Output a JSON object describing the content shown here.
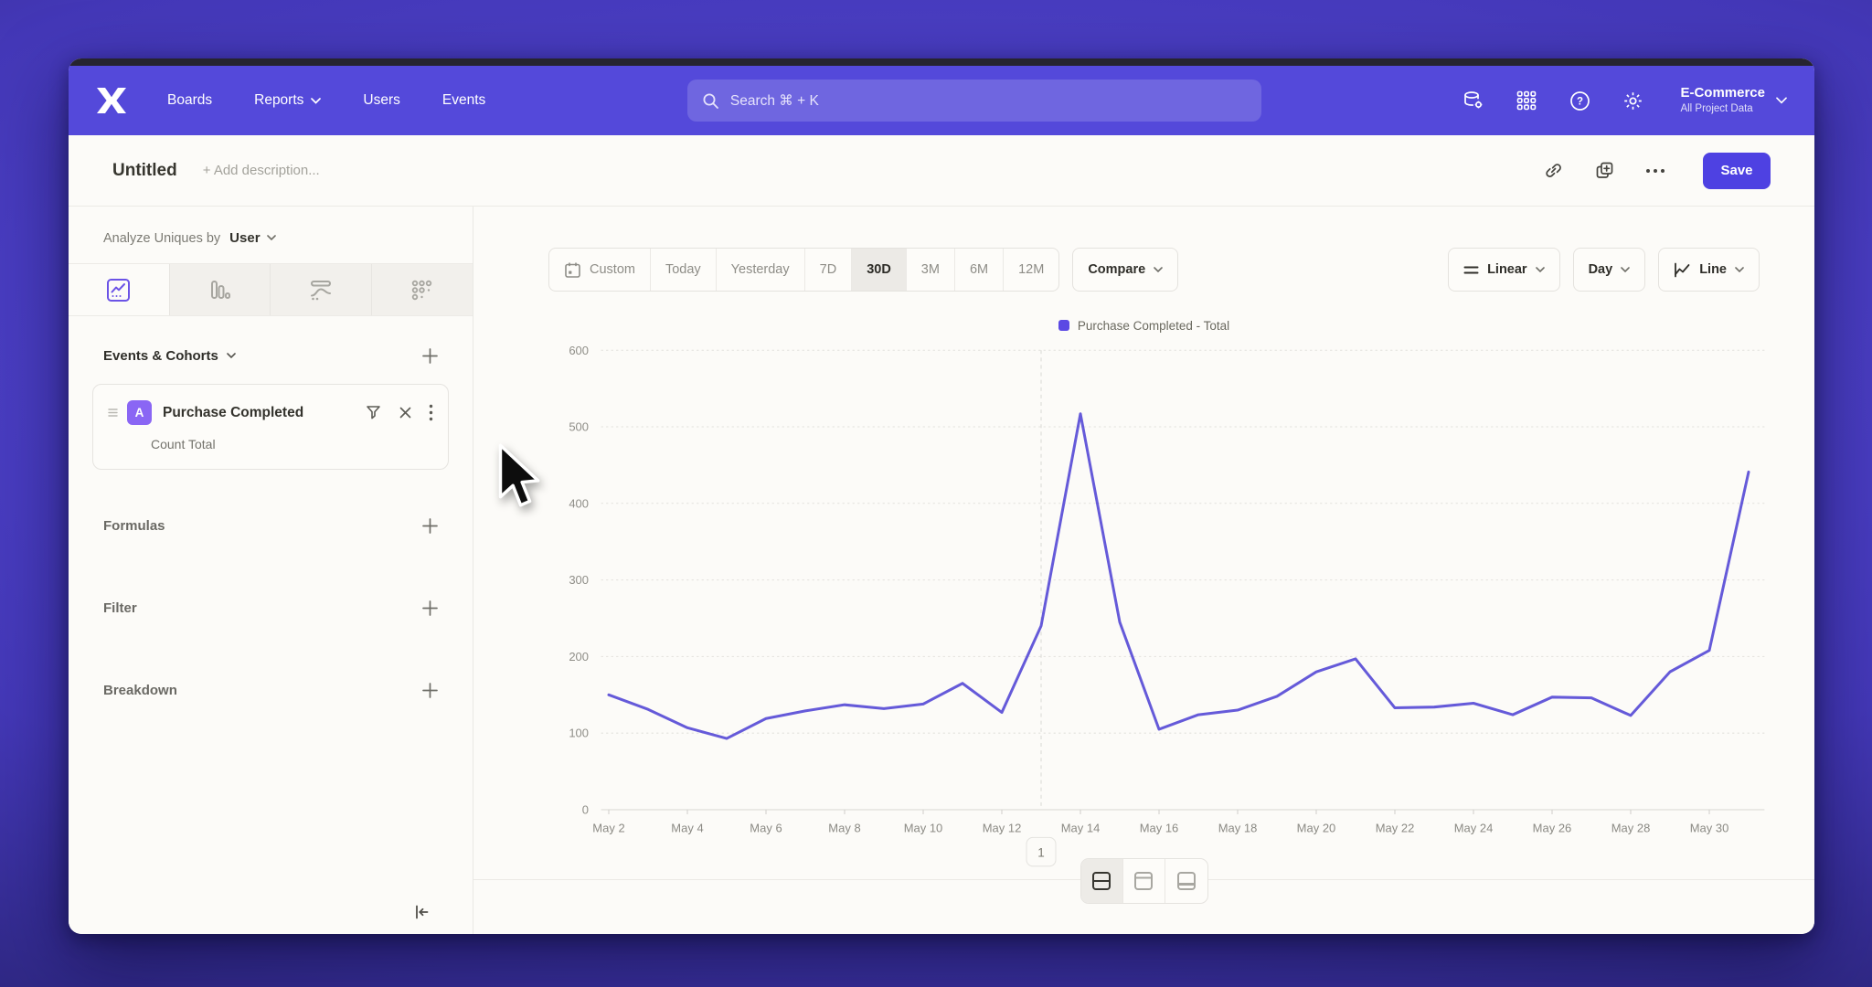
{
  "nav": {
    "logo_name": "mixpanel-logo",
    "items": [
      {
        "label": "Boards"
      },
      {
        "label": "Reports"
      },
      {
        "label": "Users"
      },
      {
        "label": "Events"
      }
    ],
    "search": {
      "label": "Search  ⌘ + K"
    },
    "project": {
      "name": "E-Commerce",
      "subtitle": "All Project Data"
    }
  },
  "header": {
    "title": "Untitled",
    "description_placeholder": "+ Add description...",
    "save_label": "Save"
  },
  "sidebar": {
    "analyze_prefix": "Analyze Uniques by",
    "analyze_value": "User",
    "events_section": {
      "title": "Events & Cohorts"
    },
    "event_card": {
      "badge": "A",
      "title": "Purchase Completed",
      "subtitle": "Count Total"
    },
    "sections": [
      {
        "label": "Formulas"
      },
      {
        "label": "Filter"
      },
      {
        "label": "Breakdown"
      }
    ]
  },
  "toolbar": {
    "date_ranges": [
      "Custom",
      "Today",
      "Yesterday",
      "7D",
      "30D",
      "3M",
      "6M",
      "12M"
    ],
    "selected_range": "30D",
    "compare_label": "Compare",
    "scale_label": "Linear",
    "interval_label": "Day",
    "chart_type_label": "Line"
  },
  "chart_data": {
    "type": "line",
    "legend": [
      "Purchase Completed - Total"
    ],
    "legend_position": "top-center",
    "grid": "horizontal-dotted",
    "x": [
      "May 2",
      "May 3",
      "May 4",
      "May 5",
      "May 6",
      "May 7",
      "May 8",
      "May 9",
      "May 10",
      "May 11",
      "May 12",
      "May 13",
      "May 14",
      "May 15",
      "May 16",
      "May 17",
      "May 18",
      "May 19",
      "May 20",
      "May 21",
      "May 22",
      "May 23",
      "May 24",
      "May 25",
      "May 26",
      "May 27",
      "May 28",
      "May 29",
      "May 30",
      "May 31"
    ],
    "x_tick_every": 2,
    "series": [
      {
        "name": "Purchase Completed - Total",
        "values": [
          150,
          131,
          107,
          93,
          119,
          129,
          137,
          132,
          138,
          165,
          127,
          240,
          517,
          245,
          105,
          124,
          130,
          148,
          180,
          197,
          133,
          134,
          139,
          124,
          147,
          146,
          123,
          180,
          208,
          441
        ]
      }
    ],
    "ylim": [
      0,
      600
    ],
    "yticks": [
      0,
      100,
      200,
      300,
      400,
      500,
      600
    ],
    "line_color": "#655ad9",
    "annotation": {
      "label": "1",
      "date": "May 13"
    }
  },
  "footer": {
    "page_marker": "1"
  }
}
